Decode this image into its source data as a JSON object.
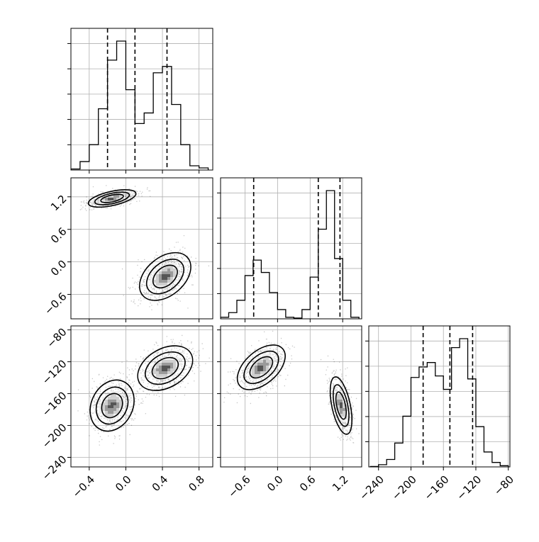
{
  "chart_data": {
    "type": "corner",
    "parameters": [
      "",
      "",
      ""
    ],
    "grid": true,
    "axes": {
      "x0": {
        "range": [
          -0.6,
          0.95
        ],
        "ticks": [
          -0.4,
          0.0,
          0.4,
          0.8
        ],
        "tick_labels": [
          "−0.4",
          "0.0",
          "0.4",
          "0.8"
        ]
      },
      "x1": {
        "range": [
          -1.05,
          1.55
        ],
        "ticks": [
          -0.6,
          0.0,
          0.6,
          1.2
        ],
        "tick_labels": [
          "−0.6",
          "0.0",
          "0.6",
          "1.2"
        ]
      },
      "x2": {
        "range": [
          -252,
          -78
        ],
        "ticks": [
          -240,
          -200,
          -160,
          -120,
          -80
        ],
        "tick_labels": [
          "−240",
          "−200",
          "−160",
          "−120",
          "−80"
        ]
      },
      "y1": {
        "range": [
          -1.05,
          1.55
        ],
        "ticks": [
          -0.6,
          0.0,
          0.6,
          1.2
        ],
        "tick_labels": [
          "−0.6",
          "0.0",
          "0.6",
          "1.2"
        ]
      },
      "y2": {
        "range": [
          -252,
          -75
        ],
        "ticks": [
          -240,
          -200,
          -160,
          -120,
          -80
        ],
        "tick_labels": [
          "−240",
          "−200",
          "−160",
          "−120",
          "−80"
        ]
      }
    },
    "histograms": [
      {
        "param": 0,
        "bin_edges": [
          -0.6,
          -0.5,
          -0.4,
          -0.3,
          -0.2,
          -0.1,
          0.0,
          0.1,
          0.2,
          0.3,
          0.4,
          0.5,
          0.6,
          0.7,
          0.8,
          0.9
        ],
        "counts": [
          0.5,
          4,
          12,
          29,
          52,
          61,
          38,
          22,
          27,
          46,
          49,
          31,
          12,
          2,
          1
        ],
        "quantiles": [
          -0.2,
          0.1,
          0.45
        ]
      },
      {
        "param": 1,
        "bin_edges": [
          -1.05,
          -0.9,
          -0.75,
          -0.6,
          -0.45,
          -0.3,
          -0.15,
          0.0,
          0.15,
          0.3,
          0.45,
          0.6,
          0.75,
          0.9,
          1.05,
          1.2,
          1.35,
          1.5
        ],
        "counts": [
          1,
          4,
          12,
          28,
          38,
          30,
          17,
          6,
          1,
          0.5,
          6,
          27,
          58,
          83,
          39,
          12,
          1
        ],
        "quantiles": [
          -0.44,
          0.75,
          1.15
        ]
      },
      {
        "param": 2,
        "bin_edges": [
          -250,
          -240,
          -230,
          -220,
          -210,
          -200,
          -190,
          -180,
          -170,
          -160,
          -150,
          -140,
          -130,
          -120,
          -110,
          -100,
          -90,
          -80
        ],
        "counts": [
          0.3,
          1.5,
          5,
          16,
          34,
          60,
          67,
          70,
          61,
          52,
          80,
          86,
          59,
          27,
          10,
          3,
          0.8
        ],
        "quantiles": [
          -185,
          -152,
          -124
        ]
      }
    ],
    "joint_modes": [
      {
        "panel": "x0-x1",
        "center": [
          -0.15,
          1.17
        ],
        "sigma": [
          0.13,
          0.08
        ],
        "rho": 0.55,
        "weight": 0.5
      },
      {
        "panel": "x0-x1",
        "center": [
          0.43,
          -0.27
        ],
        "sigma": [
          0.14,
          0.22
        ],
        "rho": 0.4,
        "weight": 0.5
      },
      {
        "panel": "x0-x2",
        "center": [
          -0.15,
          -175
        ],
        "sigma": [
          0.12,
          16
        ],
        "rho": 0.2,
        "weight": 0.5
      },
      {
        "panel": "x0-x2",
        "center": [
          0.43,
          -128
        ],
        "sigma": [
          0.15,
          14
        ],
        "rho": 0.35,
        "weight": 0.5
      },
      {
        "panel": "x1-x2",
        "center": [
          -0.3,
          -127
        ],
        "sigma": [
          0.22,
          14
        ],
        "rho": 0.5,
        "weight": 0.5
      },
      {
        "panel": "x1-x2",
        "center": [
          1.17,
          -175
        ],
        "sigma": [
          0.1,
          18
        ],
        "rho": -0.5,
        "weight": 0.5
      }
    ],
    "contour_levels": [
      "1sigma",
      "1.5sigma",
      "2sigma"
    ]
  }
}
